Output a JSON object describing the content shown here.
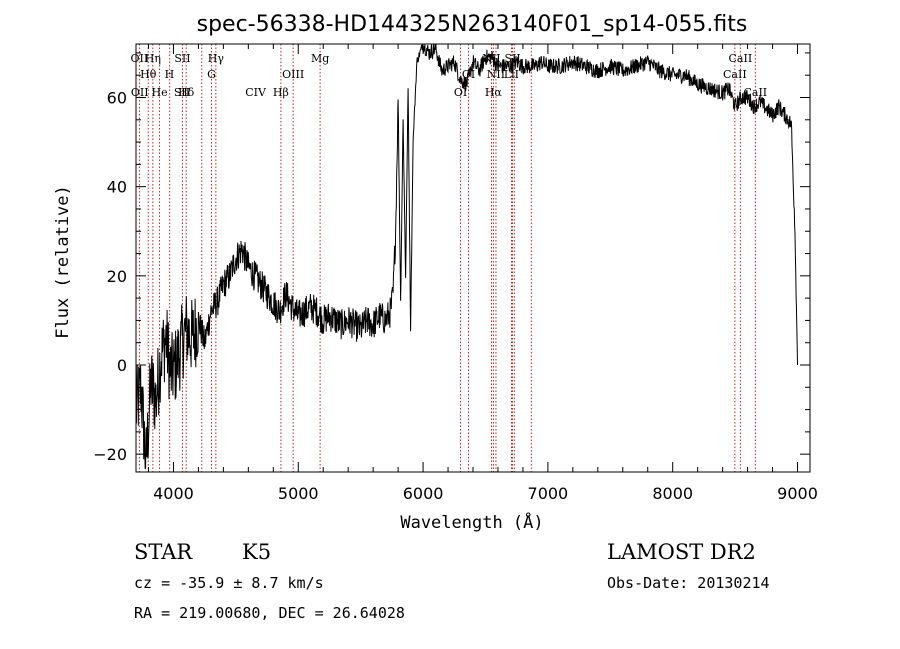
{
  "chart_data": {
    "type": "line",
    "title": "spec-56338-HD144325N263140F01_sp14-055.fits",
    "xlabel": "Wavelength (Å)",
    "ylabel": "Flux (relative)",
    "xlim": [
      3700,
      9100
    ],
    "ylim": [
      -24,
      72
    ],
    "x_ticks": [
      4000,
      5000,
      6000,
      7000,
      8000,
      9000
    ],
    "y_ticks": [
      -20,
      0,
      20,
      40,
      60
    ],
    "grid": false,
    "legend": "none",
    "series": [
      {
        "x": [
          3700,
          3740,
          3780,
          3820,
          3860,
          3900,
          3940,
          3980,
          4020,
          4060,
          4100,
          4150,
          4200,
          4250,
          4300,
          4350,
          4400,
          4450,
          4500,
          4550,
          4600,
          4650,
          4700,
          4750,
          4800,
          4850,
          4900,
          4950,
          5000,
          5050,
          5100,
          5150,
          5200,
          5250,
          5300,
          5350,
          5400,
          5450,
          5500,
          5550,
          5600,
          5650,
          5700,
          5740,
          5760,
          5780,
          5800,
          5820,
          5840,
          5860,
          5880,
          5900,
          5920,
          5950,
          6000,
          6050,
          6100,
          6150,
          6200,
          6250,
          6300,
          6350,
          6400,
          6450,
          6500,
          6550,
          6600,
          6650,
          6700,
          6750,
          6800,
          6850,
          6900,
          6950,
          7000,
          7100,
          7200,
          7300,
          7400,
          7500,
          7600,
          7700,
          7800,
          7900,
          8000,
          8100,
          8200,
          8300,
          8400,
          8450,
          8500,
          8550,
          8600,
          8650,
          8700,
          8800,
          8850,
          8900,
          8950,
          8980,
          9000
        ],
        "y": [
          -10,
          -5,
          -22,
          -4,
          -8,
          2,
          6,
          -2,
          0,
          4,
          8,
          6,
          10,
          5,
          12,
          14,
          18,
          20,
          24,
          26,
          22,
          20,
          18,
          16,
          14,
          12,
          16,
          13,
          11,
          12,
          13,
          12,
          10,
          11,
          10,
          9,
          10,
          9,
          8,
          10,
          9,
          11,
          10,
          12,
          16,
          30,
          60,
          14,
          55,
          20,
          62,
          8,
          50,
          68,
          72,
          70,
          71,
          66,
          67,
          68,
          64,
          63,
          68,
          66,
          69,
          69,
          67,
          67,
          67,
          68,
          67,
          67,
          67,
          68,
          67,
          67,
          68,
          67,
          66,
          67,
          66,
          67,
          68,
          66,
          65,
          65,
          63,
          62,
          61,
          62,
          58,
          60,
          60,
          58,
          59,
          56,
          58,
          56,
          54,
          30,
          0
        ]
      }
    ],
    "line_markers": [
      {
        "label": "OII",
        "x": 3727,
        "row": 1
      },
      {
        "label": "Hη",
        "x": 3835,
        "row": 1
      },
      {
        "label": "SII",
        "x": 4072,
        "row": 1
      },
      {
        "label": "Hγ",
        "x": 4340,
        "row": 1
      },
      {
        "label": "Mg",
        "x": 5175,
        "row": 1
      },
      {
        "label": "NII",
        "x": 6548,
        "row": 1
      },
      {
        "label": "SII",
        "x": 6717,
        "row": 1
      },
      {
        "label": "CaII",
        "x": 8542,
        "row": 1
      },
      {
        "label": "Hθ",
        "x": 3798,
        "row": 2
      },
      {
        "label": "H",
        "x": 3968,
        "row": 2
      },
      {
        "label": "G",
        "x": 4305,
        "row": 2
      },
      {
        "label": "OIII",
        "x": 4959,
        "row": 2
      },
      {
        "label": "OI",
        "x": 6364,
        "row": 2
      },
      {
        "label": "NII",
        "x": 6584,
        "row": 2
      },
      {
        "label": "LiI",
        "x": 6708,
        "row": 2
      },
      {
        "label": "CaII",
        "x": 8498,
        "row": 2
      },
      {
        "label": "OII",
        "x": 3730,
        "row": 3
      },
      {
        "label": "He",
        "x": 3889,
        "row": 3
      },
      {
        "label": "SII",
        "x": 4068,
        "row": 3
      },
      {
        "label": "Hδ",
        "x": 4102,
        "row": 3
      },
      {
        "label": "CIV",
        "x": 4658,
        "row": 3
      },
      {
        "label": "Hβ",
        "x": 4861,
        "row": 3
      },
      {
        "label": "OI",
        "x": 6300,
        "row": 3
      },
      {
        "label": "Hα",
        "x": 6563,
        "row": 3
      },
      {
        "label": "CaII",
        "x": 8662,
        "row": 3
      }
    ],
    "marker_lines_x": [
      3727,
      3798,
      3835,
      3889,
      3970,
      4072,
      4102,
      4227,
      4305,
      4340,
      4861,
      4959,
      5175,
      6300,
      6364,
      6548,
      6563,
      6584,
      6708,
      6717,
      6731,
      6867,
      8498,
      8542,
      8662
    ]
  },
  "info": {
    "object_class": "STAR",
    "subclass": "K5",
    "survey": "LAMOST DR2",
    "cz": "cz = -35.9 ± 8.7 km/s",
    "obs_date": "Obs-Date: 20130214",
    "radec": "RA = 219.00680, DEC =  26.64028"
  }
}
